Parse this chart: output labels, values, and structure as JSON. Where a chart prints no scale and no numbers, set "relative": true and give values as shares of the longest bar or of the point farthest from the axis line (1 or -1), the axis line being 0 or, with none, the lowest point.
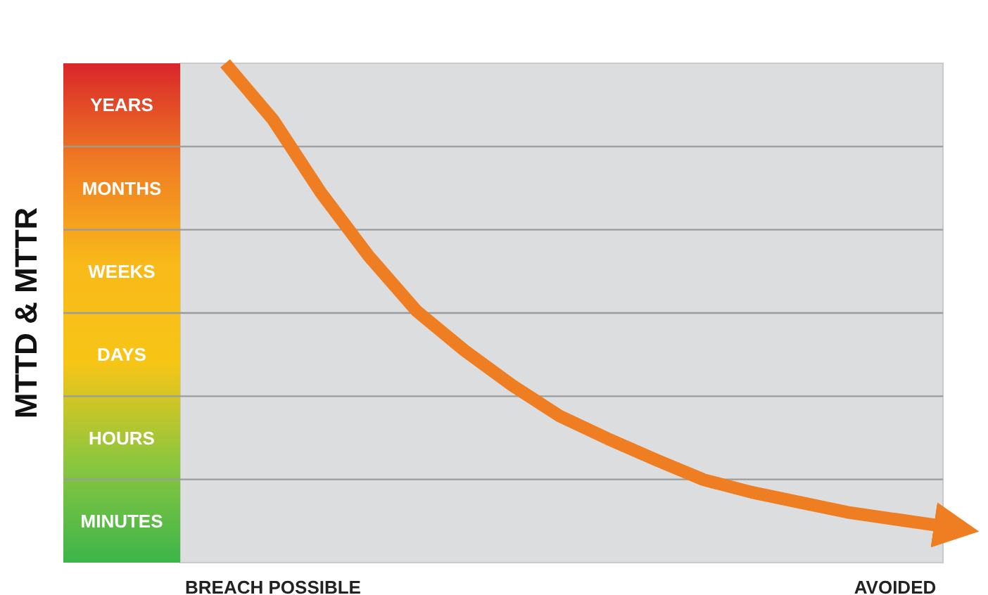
{
  "chart_data": {
    "type": "line",
    "ylabel": "MTTD & MTTR",
    "relative": true,
    "categories": [
      null,
      "BREACH POSSIBLE",
      null,
      null,
      null,
      null,
      null,
      null,
      null,
      null,
      null,
      null,
      null,
      null,
      "AVOIDED",
      null
    ],
    "series": [
      {
        "color": "#ef7d22",
        "values": [
          1,
          0.887,
          0.741,
          0.614,
          0.504,
          0.425,
          0.355,
          0.293,
          0.248,
          0.206,
          0.166,
          0.141,
          0.121,
          0.101,
          0.087,
          0.073
        ]
      }
    ],
    "annotations": [
      "MINUTES",
      "HOURS",
      "DAYS",
      "WEEKS",
      "MONTHS",
      "YEARS"
    ],
    "grid": "y",
    "marker": "none",
    "line_style": "solid"
  }
}
